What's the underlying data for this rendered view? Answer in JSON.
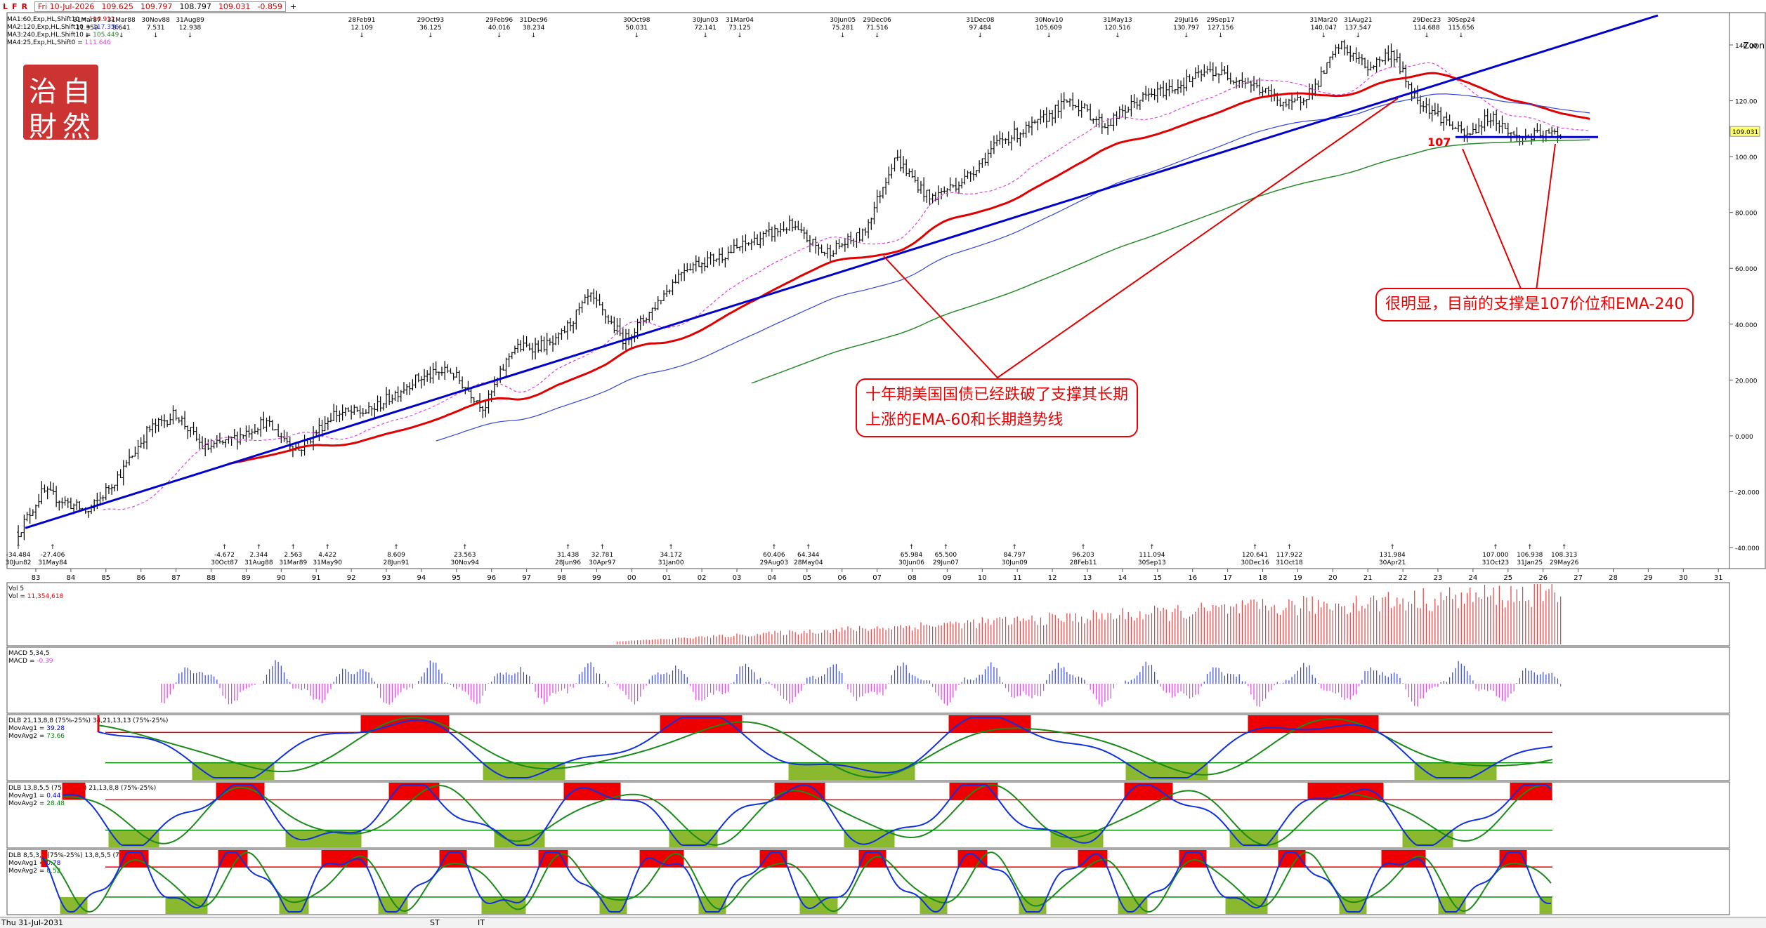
{
  "toolbar": {
    "icons": [
      "L",
      "F",
      "R"
    ],
    "date": "Fri 10-Jul-2026",
    "open": "109.625",
    "high": "109.797",
    "low": "108.797",
    "close": "109.031",
    "change": "-0.859",
    "plus": "+"
  },
  "legend": [
    {
      "text": "MA1:60,Exp,HL,Shift10 = ",
      "value": "116.912",
      "color": "#e00000"
    },
    {
      "text": "MA2:120,Exp,HL,Shift10 = ",
      "value": "117.356",
      "color": "#2a3cd0"
    },
    {
      "text": "MA3:240,Exp,HL,Shift10 = ",
      "value": "105.449",
      "color": "#2a8a2a"
    },
    {
      "text": "MA4:25,Exp,HL,Shift0 = ",
      "value": "111.646",
      "color": "#e040e0"
    }
  ],
  "seal": {
    "chars": [
      "治",
      "自",
      "財",
      "然"
    ]
  },
  "zoom_label": "Zoon",
  "annotations": {
    "box1_line1": "十年期美国国债已经跌破了支撑其长期",
    "box1_line2": "上涨的EMA-60和长期趋势线",
    "box2": "很明显，目前的支撑是107价位和EMA-240",
    "level_label": "107"
  },
  "colors": {
    "red": "#e00000",
    "blue": "#0000cc",
    "ma120": "#3346d6",
    "ma240": "#2a8a2a",
    "ma25": "#e040e0",
    "vol": "#e04040",
    "macd_pos": "#3344dd",
    "macd_neg": "#e040e0",
    "zone_red": "#ee0000",
    "zone_green": "#8ab82e"
  },
  "bottom": {
    "date": "Thu 31-Jul-2031",
    "st": "ST",
    "it": "IT"
  },
  "chart_data": {
    "type": "line",
    "price_axis": {
      "ticks": [
        "140.00",
        "120.00",
        "100.00",
        "80.000",
        "60.000",
        "40.000",
        "20.000",
        "0.000",
        "-20.000",
        "-40.000"
      ],
      "values": [
        140,
        120,
        100,
        80,
        60,
        40,
        20,
        0,
        -20,
        -40
      ],
      "last_price": "109.031"
    },
    "x_axis": {
      "labels": [
        "83",
        "84",
        "85",
        "86",
        "87",
        "88",
        "89",
        "90",
        "91",
        "92",
        "93",
        "94",
        "95",
        "96",
        "97",
        "98",
        "99",
        "00",
        "01",
        "02",
        "03",
        "04",
        "05",
        "06",
        "07",
        "08",
        "09",
        "10",
        "11",
        "12",
        "13",
        "14",
        "15",
        "16",
        "17",
        "18",
        "19",
        "20",
        "21",
        "22",
        "23",
        "24",
        "25",
        "26",
        "27",
        "28",
        "29",
        "30",
        "31"
      ]
    },
    "price_series": {
      "years": [
        1982.5,
        1983.2,
        1984.5,
        1985.5,
        1986.2,
        1987.0,
        1987.8,
        1988.5,
        1989.5,
        1990.5,
        1991.5,
        1992.5,
        1993.8,
        1994.8,
        1995.8,
        1996.6,
        1997.8,
        1998.8,
        1999.8,
        2000.5,
        2001.5,
        2002.5,
        2003.5,
        2004.5,
        2005.5,
        2006.6,
        2007.5,
        2008.5,
        2009.5,
        2010.5,
        2011.5,
        2012.5,
        2013.5,
        2014.5,
        2015.5,
        2016.5,
        2017.5,
        2018.8,
        2019.5,
        2020.2,
        2021.0,
        2021.7,
        2022.3,
        2023.0,
        2023.8,
        2024.5,
        2025.2,
        2026.5
      ],
      "values": [
        -34.5,
        -20,
        -27.4,
        -12,
        2,
        8,
        -4.7,
        -2,
        5,
        -5,
        8,
        8.6,
        20,
        23.6,
        10,
        31.4,
        32.8,
        50,
        34.2,
        44,
        60.4,
        64.3,
        70,
        75.3,
        65.5,
        72,
        100,
        84.8,
        92,
        105.6,
        111,
        120.5,
        111.1,
        120.6,
        125,
        130.8,
        127.2,
        117.9,
        125,
        140.1,
        131.9,
        137.5,
        122,
        115,
        107,
        114.7,
        106.9,
        108.3
      ]
    },
    "swing_labels": [
      {
        "top": "-34.484",
        "bottom": "30Jun82",
        "pos": "low"
      },
      {
        "top": "-27.406",
        "bottom": "31May84",
        "pos": "low"
      },
      {
        "top": "31Mar87",
        "bottom": "11.359",
        "pos": "high"
      },
      {
        "top": "31Mar88",
        "bottom": "8.641",
        "pos": "high"
      },
      {
        "top": "30Nov88",
        "bottom": "7.531",
        "pos": "high"
      },
      {
        "top": "31Aug89",
        "bottom": "12.938",
        "pos": "high"
      },
      {
        "top": "-4.672",
        "bottom": "30Oct87",
        "pos": "low"
      },
      {
        "top": "2.344",
        "bottom": "31Aug88",
        "pos": "low"
      },
      {
        "top": "2.563",
        "bottom": "31Mar89",
        "pos": "low"
      },
      {
        "top": "4.422",
        "bottom": "31May90",
        "pos": "low"
      },
      {
        "top": "28Feb91",
        "bottom": "12.109",
        "pos": "high"
      },
      {
        "top": "8.609",
        "bottom": "28Jun91",
        "pos": "low"
      },
      {
        "top": "29Oct93",
        "bottom": "36.125",
        "pos": "high"
      },
      {
        "top": "23.563",
        "bottom": "30Nov94",
        "pos": "low"
      },
      {
        "top": "29Feb96",
        "bottom": "40.016",
        "pos": "high"
      },
      {
        "top": "31Dec96",
        "bottom": "38.234",
        "pos": "high"
      },
      {
        "top": "31.438",
        "bottom": "28Jun96",
        "pos": "low"
      },
      {
        "top": "32.781",
        "bottom": "30Apr97",
        "pos": "low"
      },
      {
        "top": "30Oct98",
        "bottom": "50.031",
        "pos": "high"
      },
      {
        "top": "34.172",
        "bottom": "31Jan00",
        "pos": "low"
      },
      {
        "top": "30Jun03",
        "bottom": "72.141",
        "pos": "high"
      },
      {
        "top": "31Mar04",
        "bottom": "73.125",
        "pos": "high"
      },
      {
        "top": "60.406",
        "bottom": "29Aug03",
        "pos": "low"
      },
      {
        "top": "64.344",
        "bottom": "28May04",
        "pos": "low"
      },
      {
        "top": "30Jun05",
        "bottom": "75.281",
        "pos": "high"
      },
      {
        "top": "29Dec06",
        "bottom": "71.516",
        "pos": "high"
      },
      {
        "top": "65.984",
        "bottom": "30Jun06",
        "pos": "low"
      },
      {
        "top": "65.500",
        "bottom": "29Jun07",
        "pos": "low"
      },
      {
        "top": "31Dec08",
        "bottom": "97.484",
        "pos": "high"
      },
      {
        "top": "84.797",
        "bottom": "30Jun09",
        "pos": "low"
      },
      {
        "top": "30Nov10",
        "bottom": "105.609",
        "pos": "high"
      },
      {
        "top": "96.203",
        "bottom": "28Feb11",
        "pos": "low"
      },
      {
        "top": "31May13",
        "bottom": "120.516",
        "pos": "high"
      },
      {
        "top": "111.094",
        "bottom": "30Sep13",
        "pos": "low"
      },
      {
        "top": "29Jul16",
        "bottom": "130.797",
        "pos": "high"
      },
      {
        "top": "29Sep17",
        "bottom": "127.156",
        "pos": "high"
      },
      {
        "top": "120.641",
        "bottom": "30Dec16",
        "pos": "low"
      },
      {
        "top": "117.922",
        "bottom": "31Oct18",
        "pos": "low"
      },
      {
        "top": "31Mar20",
        "bottom": "140.047",
        "pos": "high"
      },
      {
        "top": "31Aug21",
        "bottom": "137.547",
        "pos": "high"
      },
      {
        "top": "131.984",
        "bottom": "30Apr21",
        "pos": "low"
      },
      {
        "top": "29Dec23",
        "bottom": "114.688",
        "pos": "high"
      },
      {
        "top": "30Sep24",
        "bottom": "115.656",
        "pos": "high"
      },
      {
        "top": "107.000",
        "bottom": "31Oct23",
        "pos": "low"
      },
      {
        "top": "106.938",
        "bottom": "31Jan25",
        "pos": "low"
      },
      {
        "top": "108.313",
        "bottom": "29May26",
        "pos": "low"
      }
    ],
    "support_level": 107,
    "panels": [
      {
        "name": "Vol 5",
        "label": "Vol = ",
        "value": "11,354,618"
      },
      {
        "name": "MACD 5,34,5",
        "label": "MACD = ",
        "value": "-0.39"
      },
      {
        "name": "DLB 21,13,8,8 (75%-25%) 34,21,13,13 (75%-25%)",
        "avg1_label": "MovAvg1 = ",
        "avg1": "39.28",
        "avg2_label": "MovAvg2 = ",
        "avg2": "73.66"
      },
      {
        "name": "DLB 13,8,5,5 (75%-25%) 21,13,8,8 (75%-25%)",
        "avg1_label": "MovAvg1 = ",
        "avg1": "0.44",
        "avg2_label": "MovAvg2 = ",
        "avg2": "28.48"
      },
      {
        "name": "DLB 8,5,3,3 (75%-25%) 13,8,5,5 (75%-25%)",
        "avg1_label": "MovAvg1 = ",
        "avg1": "0.78",
        "avg2_label": "MovAvg2 = ",
        "avg2": "0.52"
      }
    ]
  }
}
